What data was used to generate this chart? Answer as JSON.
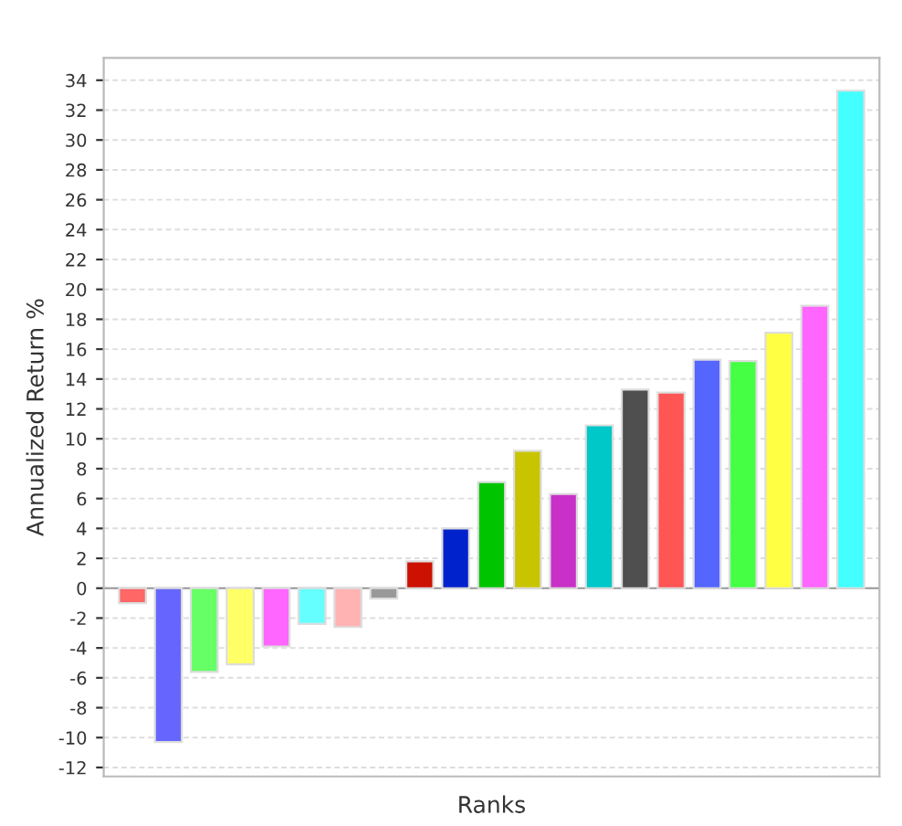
{
  "chart_data": {
    "type": "bar",
    "xlabel": "Ranks",
    "ylabel": "Annualized Return %",
    "categories": [
      null,
      null,
      null,
      null,
      null,
      null,
      null,
      null,
      null,
      null,
      null,
      null,
      null,
      null,
      null,
      null,
      null,
      null,
      null,
      null,
      null
    ],
    "values": [
      -1.0,
      -10.3,
      -5.6,
      -5.1,
      -3.9,
      -2.4,
      -2.6,
      -0.7,
      1.8,
      4.0,
      7.1,
      9.2,
      6.3,
      10.9,
      13.3,
      13.1,
      15.3,
      15.2,
      17.1,
      18.9,
      33.3
    ],
    "colors": [
      "#ff6666",
      "#6666ff",
      "#66ff66",
      "#ffff66",
      "#ff66ff",
      "#66ffff",
      "#ffb3b3",
      "#999999",
      "#cc1100",
      "#0022cc",
      "#00c400",
      "#c8c400",
      "#c830c8",
      "#00c8c8",
      "#4f4f4f",
      "#ff5555",
      "#5566ff",
      "#44ff44",
      "#ffff44",
      "#ff66ff",
      "#44ffff"
    ],
    "ylim": [
      -12.6,
      35.5
    ],
    "yticks": [
      -12,
      -10,
      -8,
      -6,
      -4,
      -2,
      0,
      2,
      4,
      6,
      8,
      10,
      12,
      14,
      16,
      18,
      20,
      22,
      24,
      26,
      28,
      30,
      32,
      34
    ],
    "grid": "y"
  }
}
